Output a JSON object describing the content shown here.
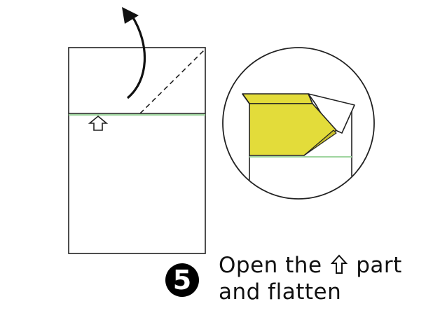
{
  "step": {
    "number": "5",
    "caption_line1_before": "Open the",
    "caption_line1_after": "part",
    "caption_line2": "and flatten",
    "caption_icon": "hollow-up-arrow-icon"
  },
  "colors": {
    "outline": "#222222",
    "flap_fill": "#e3dc3a",
    "flap_shadow": "#c9bf2a",
    "crease_green": "#9fd59f",
    "background": "#ffffff"
  },
  "icons": [
    "curved-arrow-icon",
    "hollow-up-arrow-icon",
    "magnifier-circle"
  ]
}
